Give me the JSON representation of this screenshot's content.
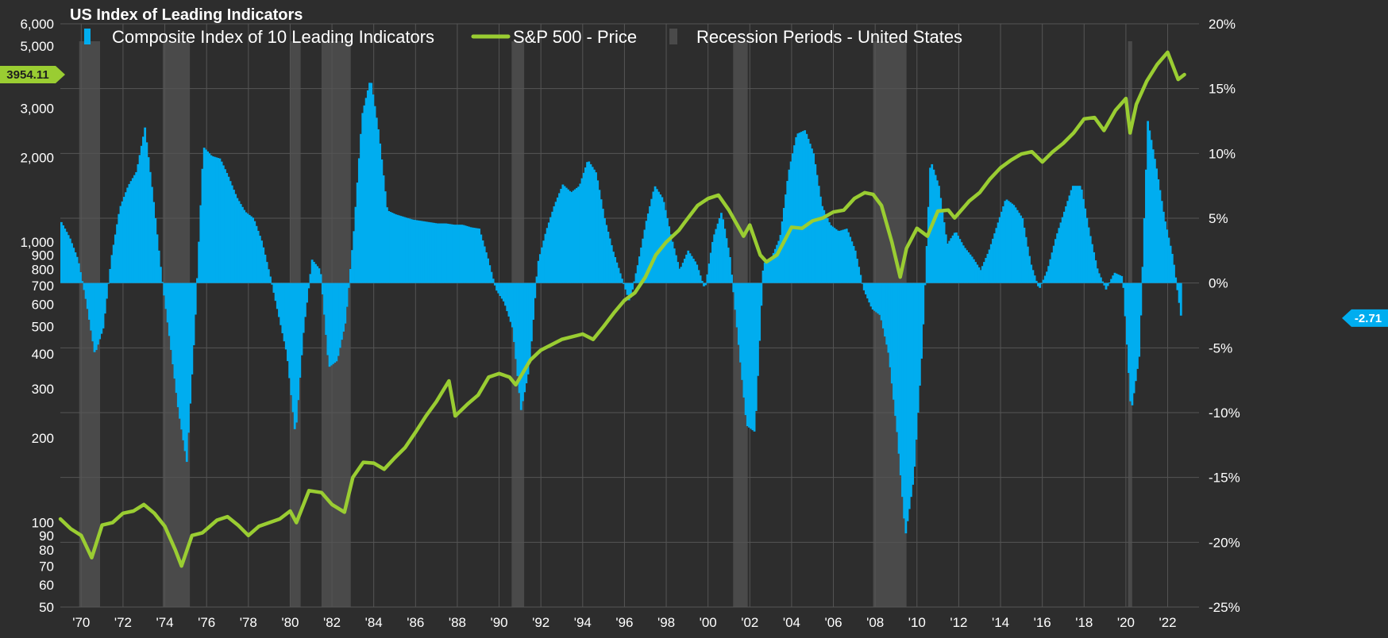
{
  "chart_data": {
    "type": "bar+line",
    "title": "US Index of Leading Indicators",
    "colors": {
      "background": "#2d2d2d",
      "grid": "#555555",
      "bar": "#00adef",
      "line": "#9acd32",
      "recession": "#4a4a4a"
    },
    "legend": {
      "placement": "top-left",
      "items": [
        {
          "label": "Composite Index of 10 Leading Indicators",
          "color": "#00adef",
          "marker": "bar"
        },
        {
          "label": "S&P 500 - Price",
          "color": "#9acd32",
          "marker": "line"
        },
        {
          "label": "Recession Periods - United States",
          "color": "#4a4a4a",
          "marker": "bar"
        }
      ]
    },
    "x_axis": {
      "range": [
        1969.0,
        2023.5
      ],
      "ticks": [
        1970,
        1972,
        1974,
        1976,
        1978,
        1980,
        1982,
        1984,
        1986,
        1988,
        1990,
        1992,
        1994,
        1996,
        1998,
        2000,
        2002,
        2004,
        2006,
        2008,
        2010,
        2012,
        2014,
        2016,
        2018,
        2020,
        2022
      ],
      "tick_labels": [
        "'70",
        "'72",
        "'74",
        "'76",
        "'78",
        "'80",
        "'82",
        "'84",
        "'86",
        "'88",
        "'90",
        "'92",
        "'94",
        "'96",
        "'98",
        "'00",
        "'02",
        "'04",
        "'06",
        "'08",
        "'10",
        "'12",
        "'14",
        "'16",
        "'18",
        "'20",
        "'22"
      ]
    },
    "left_axis": {
      "scale": "log",
      "range": [
        50,
        6000
      ],
      "ticks": [
        50,
        60,
        70,
        80,
        90,
        100,
        200,
        300,
        400,
        500,
        600,
        700,
        800,
        900,
        1000,
        2000,
        3000,
        5000,
        6000
      ],
      "tick_labels": [
        "50",
        "60",
        "70",
        "80",
        "90",
        "100",
        "200",
        "300",
        "400",
        "500",
        "600",
        "700",
        "800",
        "900",
        "1,000",
        "2,000",
        "3,000",
        "5,000",
        "6,000"
      ]
    },
    "right_axis": {
      "scale": "linear",
      "range": [
        -25,
        20
      ],
      "ticks": [
        -25,
        -20,
        -15,
        -10,
        -5,
        0,
        5,
        10,
        15,
        20
      ],
      "tick_labels": [
        "-25%",
        "-20%",
        "-15%",
        "-10%",
        "-5%",
        "0%",
        "5%",
        "10%",
        "15%",
        "20%"
      ]
    },
    "recessions": [
      [
        1969.9,
        1970.9
      ],
      [
        1973.9,
        1975.2
      ],
      [
        1980.0,
        1980.5
      ],
      [
        1981.5,
        1982.9
      ],
      [
        1990.6,
        1991.2
      ],
      [
        2001.2,
        2001.9
      ],
      [
        2007.9,
        2009.5
      ],
      [
        2020.1,
        2020.3
      ]
    ],
    "series": [
      {
        "name": "Composite Index of 10 Leading Indicators",
        "axis": "right",
        "type": "bar",
        "x": [
          1969.0,
          1969.4,
          1969.8,
          1970.2,
          1970.6,
          1971.0,
          1971.4,
          1971.8,
          1972.2,
          1972.6,
          1973.0,
          1973.4,
          1973.8,
          1974.2,
          1974.6,
          1975.0,
          1975.4,
          1975.8,
          1976.2,
          1976.6,
          1977.0,
          1977.4,
          1977.8,
          1978.2,
          1978.6,
          1979.0,
          1979.4,
          1979.8,
          1980.2,
          1980.6,
          1981.0,
          1981.4,
          1981.8,
          1982.2,
          1982.6,
          1983.0,
          1983.4,
          1983.8,
          1984.2,
          1984.6,
          1985.0,
          1985.4,
          1985.8,
          1986.2,
          1986.6,
          1987.0,
          1987.4,
          1987.8,
          1988.2,
          1988.6,
          1989.0,
          1989.4,
          1989.8,
          1990.2,
          1990.6,
          1991.0,
          1991.4,
          1991.8,
          1992.2,
          1992.6,
          1993.0,
          1993.4,
          1993.8,
          1994.2,
          1994.6,
          1995.0,
          1995.4,
          1995.8,
          1996.2,
          1996.6,
          1997.0,
          1997.4,
          1997.8,
          1998.2,
          1998.6,
          1999.0,
          1999.4,
          1999.8,
          2000.2,
          2000.6,
          2001.0,
          2001.4,
          2001.8,
          2002.2,
          2002.6,
          2003.0,
          2003.4,
          2003.8,
          2004.2,
          2004.6,
          2005.0,
          2005.4,
          2005.8,
          2006.2,
          2006.6,
          2007.0,
          2007.4,
          2007.8,
          2008.2,
          2008.6,
          2009.0,
          2009.4,
          2009.8,
          2010.2,
          2010.6,
          2011.0,
          2011.4,
          2011.8,
          2012.2,
          2012.6,
          2013.0,
          2013.4,
          2013.8,
          2014.2,
          2014.6,
          2015.0,
          2015.4,
          2015.8,
          2016.2,
          2016.6,
          2017.0,
          2017.4,
          2017.8,
          2018.2,
          2018.6,
          2019.0,
          2019.4,
          2019.8,
          2020.2,
          2020.6,
          2021.0,
          2021.4,
          2021.8,
          2022.2,
          2022.6
        ],
        "values": [
          4.7,
          3.5,
          1.8,
          -1.5,
          -5.5,
          -3.5,
          2.0,
          5.8,
          7.5,
          8.6,
          12.0,
          6.5,
          0.5,
          -4.5,
          -9.8,
          -13.8,
          -3.0,
          10.5,
          9.8,
          9.6,
          8.2,
          6.6,
          5.5,
          5.0,
          3.2,
          0.5,
          -2.5,
          -5.5,
          -11.8,
          -3.5,
          1.8,
          1.0,
          -6.5,
          -6.0,
          -3.0,
          4.0,
          13.0,
          15.8,
          11.5,
          5.6,
          5.3,
          5.1,
          4.9,
          4.8,
          4.7,
          4.6,
          4.6,
          4.5,
          4.5,
          4.3,
          4.2,
          2.0,
          -0.5,
          -1.5,
          -3.5,
          -9.8,
          -6.5,
          1.5,
          4.0,
          6.0,
          7.6,
          7.0,
          7.5,
          9.5,
          8.5,
          5.0,
          2.5,
          0.5,
          -1.5,
          1.5,
          4.8,
          7.5,
          6.5,
          3.5,
          1.0,
          2.5,
          1.5,
          -0.5,
          3.5,
          5.5,
          2.0,
          -4.5,
          -11.0,
          -11.5,
          1.5,
          2.0,
          3.5,
          8.5,
          11.5,
          11.8,
          10.0,
          6.0,
          4.5,
          4.0,
          4.2,
          2.5,
          -0.5,
          -2.0,
          -2.5,
          -5.5,
          -11.5,
          -19.5,
          -15.0,
          -5.0,
          9.5,
          7.5,
          3.0,
          4.0,
          2.8,
          2.0,
          1.0,
          2.5,
          4.5,
          6.5,
          6.0,
          5.0,
          1.5,
          -0.5,
          1.0,
          3.5,
          5.5,
          7.5,
          7.5,
          4.0,
          1.0,
          -0.5,
          0.8,
          0.5,
          -10.0,
          -5.5,
          12.5,
          9.0,
          5.0,
          2.0,
          -2.71
        ]
      },
      {
        "name": "S&P 500 - Price",
        "axis": "left",
        "type": "line",
        "x": [
          1969.0,
          1969.5,
          1970.0,
          1970.5,
          1971.0,
          1971.5,
          1972.0,
          1972.5,
          1973.0,
          1973.5,
          1974.0,
          1974.5,
          1974.8,
          1975.3,
          1975.8,
          1976.5,
          1977.0,
          1977.5,
          1978.0,
          1978.5,
          1979.0,
          1979.5,
          1980.0,
          1980.3,
          1980.9,
          1981.5,
          1982.0,
          1982.6,
          1983.0,
          1983.5,
          1984.0,
          1984.5,
          1985.0,
          1985.5,
          1986.0,
          1986.5,
          1987.0,
          1987.6,
          1987.9,
          1988.5,
          1989.0,
          1989.5,
          1990.0,
          1990.5,
          1990.8,
          1991.5,
          1992.0,
          1993.0,
          1994.0,
          1994.5,
          1995.0,
          1995.5,
          1996.0,
          1996.5,
          1997.0,
          1997.5,
          1998.0,
          1998.6,
          1998.9,
          1999.5,
          2000.0,
          2000.5,
          2001.0,
          2001.7,
          2002.0,
          2002.5,
          2002.8,
          2003.3,
          2004.0,
          2004.5,
          2005.0,
          2005.5,
          2006.0,
          2006.5,
          2007.0,
          2007.5,
          2007.9,
          2008.3,
          2008.8,
          2009.2,
          2009.5,
          2010.0,
          2010.5,
          2011.0,
          2011.5,
          2011.8,
          2012.5,
          2013.0,
          2013.5,
          2014.0,
          2014.5,
          2015.0,
          2015.5,
          2016.0,
          2016.5,
          2017.0,
          2017.5,
          2018.0,
          2018.5,
          2018.95,
          2019.5,
          2020.0,
          2020.2,
          2020.5,
          2021.0,
          2021.5,
          2022.0,
          2022.5,
          2022.8
        ],
        "values": [
          103,
          95,
          90,
          75,
          98,
          100,
          108,
          110,
          116,
          108,
          97,
          80,
          70,
          90,
          92,
          102,
          105,
          98,
          90,
          97,
          100,
          103,
          110,
          100,
          130,
          128,
          116,
          109,
          145,
          164,
          163,
          155,
          170,
          185,
          210,
          240,
          270,
          320,
          240,
          265,
          285,
          330,
          340,
          330,
          310,
          380,
          412,
          450,
          470,
          450,
          500,
          560,
          620,
          660,
          750,
          900,
          1000,
          1100,
          1180,
          1350,
          1430,
          1470,
          1300,
          1050,
          1150,
          900,
          850,
          900,
          1130,
          1120,
          1190,
          1220,
          1280,
          1300,
          1430,
          1500,
          1480,
          1350,
          1000,
          750,
          950,
          1120,
          1050,
          1290,
          1300,
          1220,
          1400,
          1500,
          1680,
          1840,
          1960,
          2060,
          2100,
          1930,
          2100,
          2250,
          2450,
          2750,
          2780,
          2500,
          2950,
          3250,
          2450,
          3100,
          3750,
          4300,
          4750,
          3800,
          3954.11
        ]
      }
    ],
    "badges": {
      "left_value": "3954.11",
      "right_value": "-2.71"
    }
  }
}
